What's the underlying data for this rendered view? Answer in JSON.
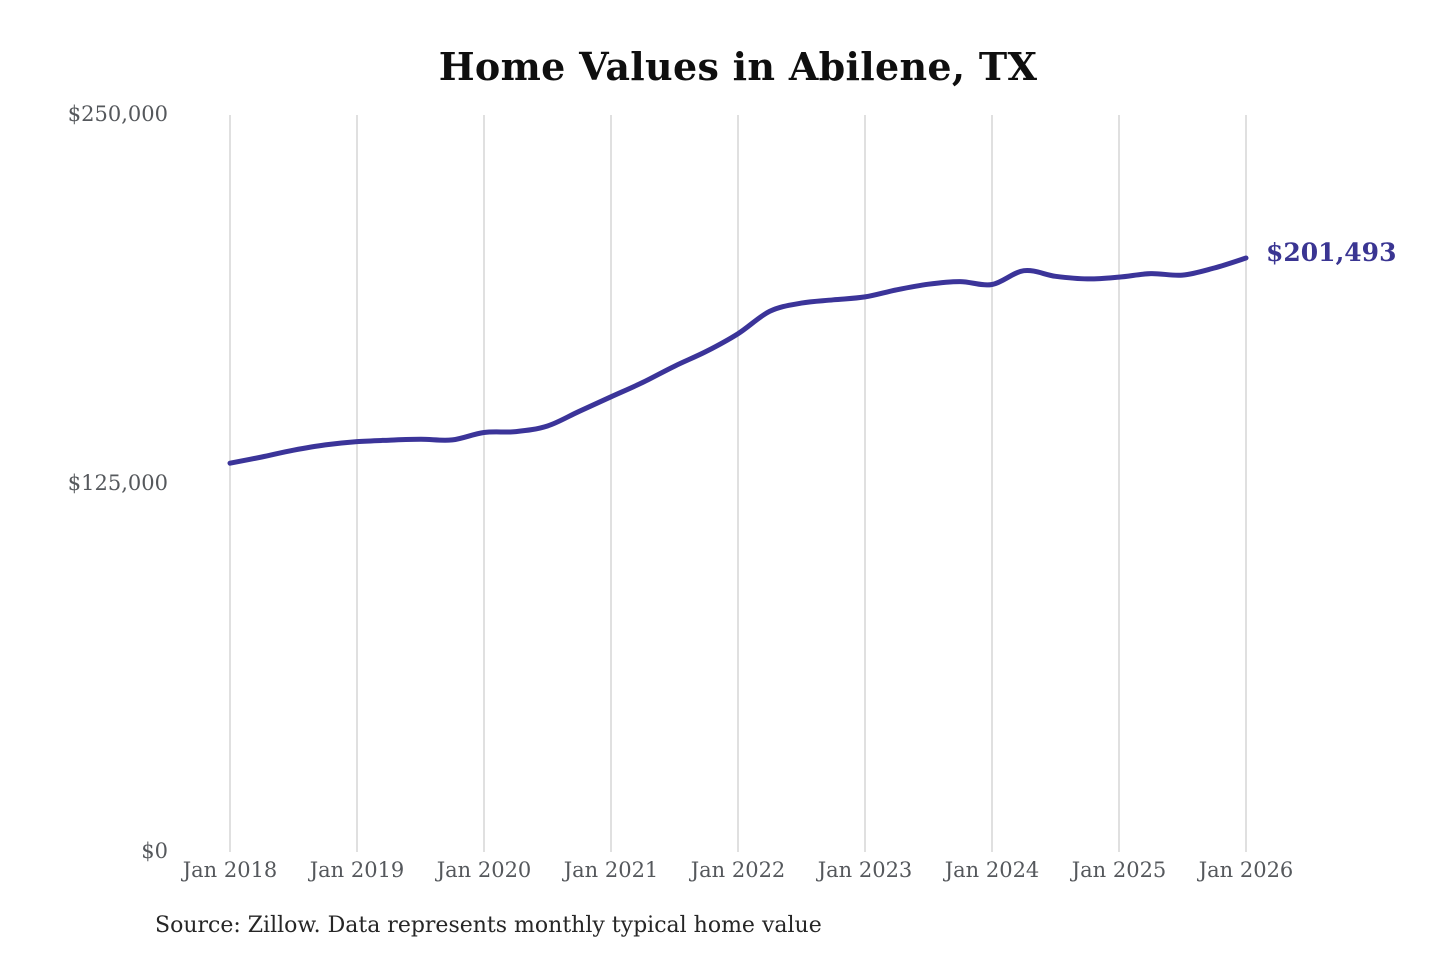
{
  "chart_data": {
    "type": "line",
    "title": "Home Values in Abilene, TX",
    "xlabel": "",
    "ylabel": "",
    "ylim": [
      0,
      250000
    ],
    "grid": "vertical-only",
    "legend": "none",
    "line_color": "#3b3499",
    "gridline_color": "#d2d2d2",
    "tick_color": "#55585c",
    "end_label": "$201,493",
    "end_label_color": "#3a3592",
    "source": "Source: Zillow. Data represents monthly typical home value",
    "yticks": [
      {
        "label": "$0",
        "value": 0
      },
      {
        "label": "$125,000",
        "value": 125000
      },
      {
        "label": "$250,000",
        "value": 250000
      }
    ],
    "xticks": [
      "Jan 2018",
      "Jan 2019",
      "Jan 2020",
      "Jan 2021",
      "Jan 2022",
      "Jan 2023",
      "Jan 2024",
      "Jan 2025",
      "Jan 2026"
    ],
    "x": [
      "Jan 2018",
      "Apr 2018",
      "Jul 2018",
      "Oct 2018",
      "Jan 2019",
      "Apr 2019",
      "Jul 2019",
      "Oct 2019",
      "Jan 2020",
      "Apr 2020",
      "Jul 2020",
      "Oct 2020",
      "Jan 2021",
      "Apr 2021",
      "Jul 2021",
      "Oct 2021",
      "Jan 2022",
      "Apr 2022",
      "Jul 2022",
      "Oct 2022",
      "Jan 2023",
      "Apr 2023",
      "Jul 2023",
      "Oct 2023",
      "Jan 2024",
      "Apr 2024",
      "Jul 2024",
      "Oct 2024",
      "Jan 2025",
      "Apr 2025",
      "Jul 2025",
      "Oct 2025",
      "Jan 2026"
    ],
    "values": [
      131900,
      134000,
      136300,
      138100,
      139200,
      139700,
      140000,
      139800,
      142300,
      142600,
      144500,
      149500,
      154400,
      159300,
      164800,
      169800,
      175800,
      183400,
      186200,
      187300,
      188300,
      190700,
      192600,
      193500,
      192500,
      197200,
      195300,
      194400,
      195000,
      196200,
      195700,
      198100,
      201493
    ]
  }
}
